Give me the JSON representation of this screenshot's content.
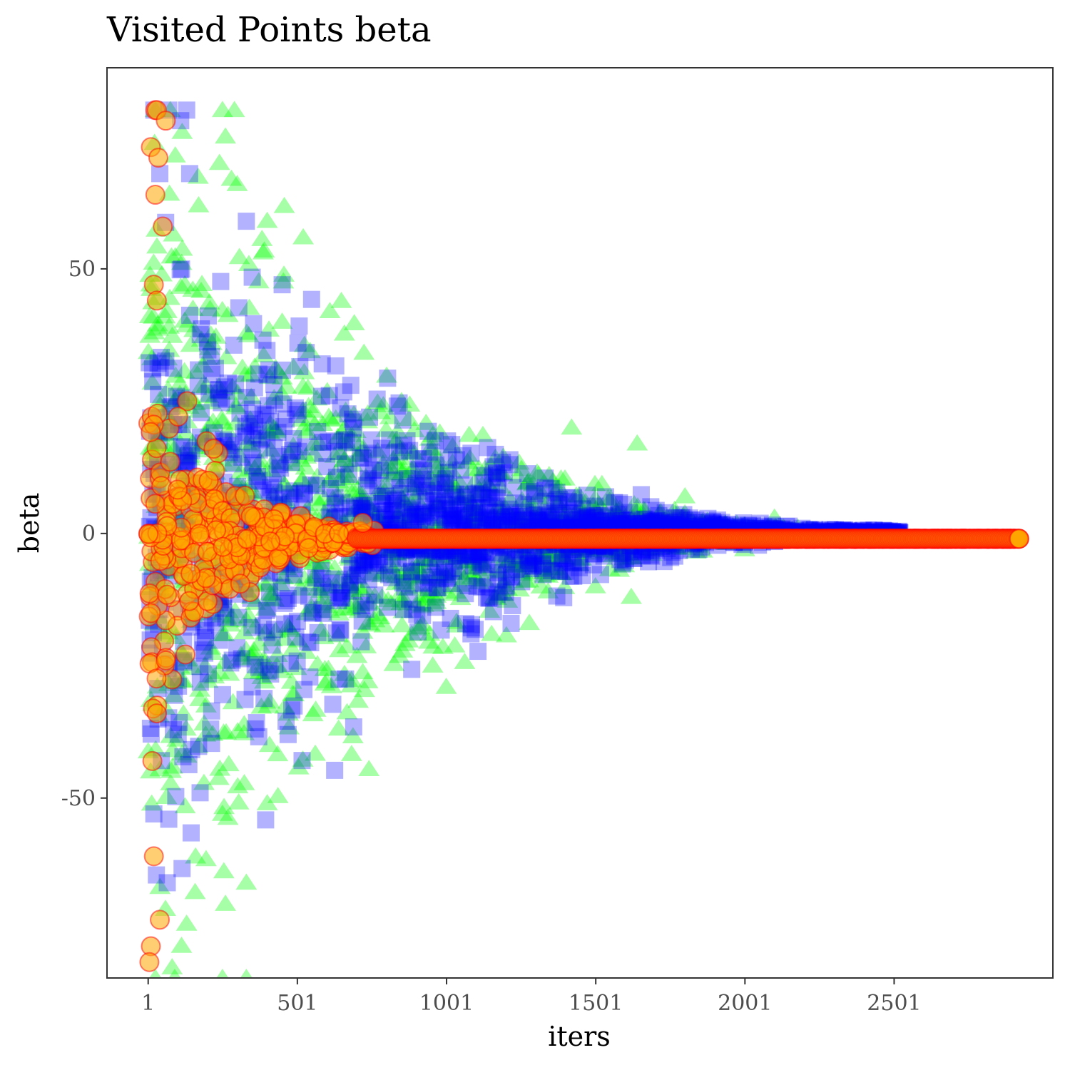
{
  "chart_data": {
    "type": "scatter",
    "title": "Visited Points beta",
    "xlabel": "iters",
    "ylabel": "beta",
    "x_ticks": [
      1,
      501,
      1001,
      1501,
      2001,
      2501
    ],
    "y_ticks": [
      50,
      0,
      -50
    ],
    "y_tick_labels": [
      "50",
      "0",
      "-50"
    ],
    "xlim": [
      -137,
      3033
    ],
    "ylim": [
      -84,
      88
    ],
    "grid": false,
    "legend": "none",
    "series": [
      {
        "marker": "triangle",
        "color": "#00ff00",
        "opacity": 0.35,
        "x_max": 2230,
        "spread_start": 80,
        "spread_end": 1,
        "samples": [
          {
            "x": 25,
            "y": 80
          },
          {
            "x": 75,
            "y": 80
          },
          {
            "x": 250,
            "y": 80
          },
          {
            "x": 290,
            "y": 80
          },
          {
            "x": 170,
            "y": 62
          },
          {
            "x": 240,
            "y": 70
          },
          {
            "x": 280,
            "y": 67
          },
          {
            "x": 260,
            "y": 75
          },
          {
            "x": 450,
            "y": 40
          },
          {
            "x": 610,
            "y": 42
          },
          {
            "x": 850,
            "y": 25
          },
          {
            "x": 1420,
            "y": 20
          },
          {
            "x": 1640,
            "y": 17
          },
          {
            "x": 1800,
            "y": 7
          },
          {
            "x": 2100,
            "y": 3
          },
          {
            "x": 25,
            "y": -84
          },
          {
            "x": 90,
            "y": -84
          },
          {
            "x": 250,
            "y": -84
          },
          {
            "x": 330,
            "y": -84
          },
          {
            "x": 330,
            "y": -66
          },
          {
            "x": 260,
            "y": -70
          },
          {
            "x": 400,
            "y": -51
          },
          {
            "x": 250,
            "y": -53
          },
          {
            "x": 1000,
            "y": -29
          },
          {
            "x": 1620,
            "y": -12
          },
          {
            "x": 1500,
            "y": -10
          },
          {
            "x": 2000,
            "y": -3
          }
        ]
      },
      {
        "marker": "square",
        "color": "#0000ff",
        "opacity": 0.3,
        "x_max": 2520,
        "spread_start": 60,
        "spread_end": 0.5,
        "samples": [
          {
            "x": 20,
            "y": 80
          },
          {
            "x": 70,
            "y": 80
          },
          {
            "x": 130,
            "y": 80
          },
          {
            "x": 110,
            "y": 78
          },
          {
            "x": 40,
            "y": 68
          },
          {
            "x": 140,
            "y": 68
          },
          {
            "x": 330,
            "y": 59
          },
          {
            "x": 450,
            "y": 47
          },
          {
            "x": 680,
            "y": 28
          },
          {
            "x": 20,
            "y": -53
          },
          {
            "x": 65,
            "y": -66
          },
          {
            "x": 70,
            "y": -54
          },
          {
            "x": 175,
            "y": -49
          },
          {
            "x": 470,
            "y": -38
          },
          {
            "x": 740,
            "y": -13
          }
        ]
      },
      {
        "marker": "circle",
        "fill": "#ffa500",
        "stroke": "#ff0000",
        "opacity": 0.55,
        "x_max": 2920,
        "center": -1,
        "spread_start": 35,
        "spread_end": 0,
        "samples": [
          {
            "x": 25,
            "y": 80
          },
          {
            "x": 30,
            "y": 80
          },
          {
            "x": 60,
            "y": 78
          },
          {
            "x": 10,
            "y": 73
          },
          {
            "x": 35,
            "y": 71
          },
          {
            "x": 25,
            "y": 64
          },
          {
            "x": 50,
            "y": 58
          },
          {
            "x": 20,
            "y": 47
          },
          {
            "x": 30,
            "y": 44
          },
          {
            "x": 15,
            "y": -43
          },
          {
            "x": 20,
            "y": -61
          },
          {
            "x": 40,
            "y": -73
          },
          {
            "x": 10,
            "y": -78
          },
          {
            "x": 5,
            "y": -81
          },
          {
            "x": 30,
            "y": -34
          },
          {
            "x": 60,
            "y": -24
          },
          {
            "x": 220,
            "y": 16
          },
          {
            "x": 720,
            "y": 2
          },
          {
            "x": 2920,
            "y": -1
          }
        ]
      }
    ]
  }
}
